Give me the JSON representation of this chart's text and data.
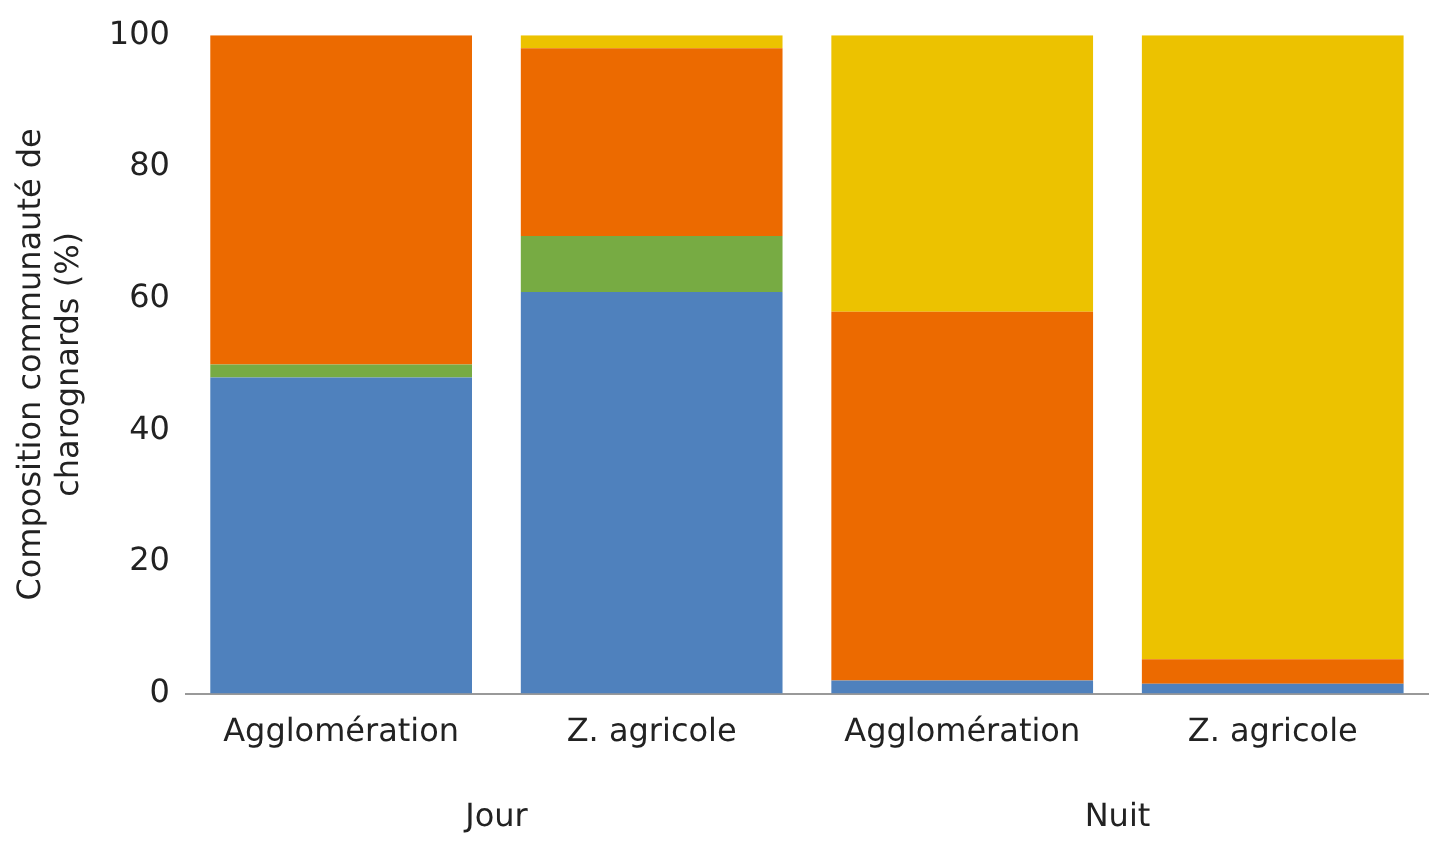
{
  "chart_data": {
    "type": "bar",
    "stacked": true,
    "ylabel": "Composition communauté de charognards (%)",
    "categories": [
      "Agglomération",
      "Z. agricole",
      "Agglomération",
      "Z. agricole"
    ],
    "series": [
      {
        "color": "#4f81bd",
        "values": [
          48,
          61,
          2,
          1.5
        ]
      },
      {
        "color": "#77ab43",
        "values": [
          2,
          8.5,
          0,
          0
        ]
      },
      {
        "color": "#ec6a00",
        "values": [
          50,
          28.5,
          56,
          3.7
        ]
      },
      {
        "color": "#ecc200",
        "values": [
          0,
          2,
          42,
          94.8
        ]
      }
    ],
    "ylim": [
      0,
      100
    ],
    "yticks": [
      0,
      20,
      40,
      60,
      80,
      100
    ],
    "grid": false,
    "legend": false,
    "annotations": [
      "Jour",
      "Nuit"
    ]
  }
}
